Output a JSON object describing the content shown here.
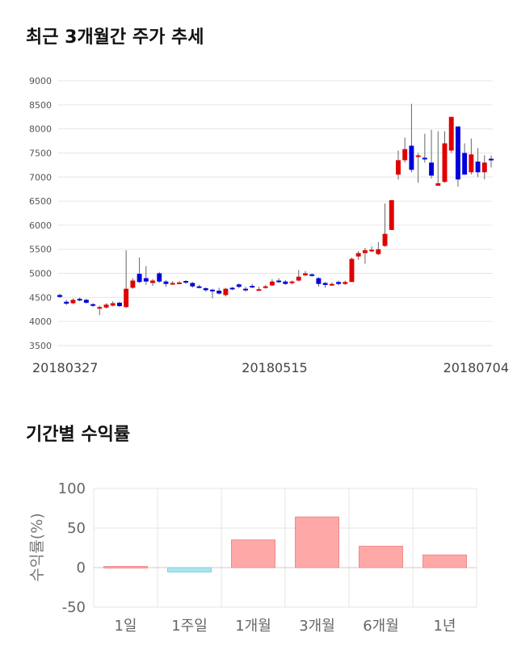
{
  "titles": {
    "price_trend": "최근 3개월간 주가 추세",
    "period_returns": "기간별 수익률"
  },
  "colors": {
    "up": "#e00000",
    "down": "#0000dd",
    "grid": "#e6e6e6",
    "positive_bar": "#ffa8a8",
    "negative_bar": "#a8e6f0"
  },
  "chart_data": [
    {
      "type": "candlestick",
      "title": "최근 3개월간 주가 추세",
      "ylim": [
        3500,
        9000
      ],
      "yticks": [
        3500,
        4000,
        4500,
        5000,
        5500,
        6000,
        6500,
        7000,
        7500,
        8000,
        8500,
        9000
      ],
      "xtick_labels": [
        "20180327",
        "20180515",
        "20180704"
      ],
      "candles": [
        [
          4550,
          4510,
          4580,
          4490
        ],
        [
          4410,
          4370,
          4450,
          4340
        ],
        [
          4380,
          4450,
          4480,
          4360
        ],
        [
          4470,
          4450,
          4500,
          4420
        ],
        [
          4450,
          4390,
          4470,
          4370
        ],
        [
          4360,
          4330,
          4380,
          4300
        ],
        [
          4290,
          4300,
          4330,
          4130
        ],
        [
          4290,
          4350,
          4380,
          4270
        ],
        [
          4330,
          4380,
          4420,
          4310
        ],
        [
          4390,
          4320,
          4410,
          4300
        ],
        [
          4300,
          4680,
          5480,
          4280
        ],
        [
          4700,
          4850,
          4900,
          4680
        ],
        [
          4990,
          4820,
          5330,
          4800
        ],
        [
          4900,
          4830,
          5150,
          4760
        ],
        [
          4800,
          4850,
          4880,
          4740
        ],
        [
          5000,
          4830,
          5030,
          4800
        ],
        [
          4830,
          4780,
          4860,
          4720
        ],
        [
          4790,
          4800,
          4840,
          4760
        ],
        [
          4800,
          4810,
          4840,
          4780
        ],
        [
          4840,
          4810,
          4860,
          4780
        ],
        [
          4800,
          4730,
          4820,
          4700
        ],
        [
          4730,
          4720,
          4760,
          4690
        ],
        [
          4690,
          4650,
          4710,
          4620
        ],
        [
          4660,
          4640,
          4680,
          4480
        ],
        [
          4640,
          4580,
          4700,
          4560
        ],
        [
          4550,
          4680,
          4700,
          4520
        ],
        [
          4700,
          4690,
          4720,
          4650
        ],
        [
          4770,
          4720,
          4790,
          4690
        ],
        [
          4680,
          4660,
          4720,
          4620
        ],
        [
          4740,
          4710,
          4780,
          4690
        ],
        [
          4660,
          4670,
          4720,
          4640
        ],
        [
          4700,
          4730,
          4760,
          4680
        ],
        [
          4750,
          4830,
          4880,
          4730
        ],
        [
          4850,
          4820,
          4900,
          4800
        ],
        [
          4830,
          4780,
          4860,
          4760
        ],
        [
          4800,
          4830,
          4850,
          4770
        ],
        [
          4850,
          4930,
          5070,
          4830
        ],
        [
          4960,
          5000,
          5050,
          4940
        ],
        [
          4980,
          4960,
          5000,
          4930
        ],
        [
          4900,
          4780,
          4920,
          4720
        ],
        [
          4800,
          4760,
          4820,
          4700
        ],
        [
          4760,
          4780,
          4810,
          4740
        ],
        [
          4820,
          4780,
          4850,
          4750
        ],
        [
          4780,
          4820,
          4850,
          4760
        ],
        [
          4820,
          5300,
          5330,
          4820
        ],
        [
          5350,
          5420,
          5460,
          5280
        ],
        [
          5420,
          5480,
          5530,
          5200
        ],
        [
          5470,
          5490,
          5560,
          5440
        ],
        [
          5400,
          5500,
          5650,
          5380
        ],
        [
          5570,
          5820,
          6450,
          5550
        ],
        [
          5900,
          6520,
          6520,
          5900
        ],
        [
          7050,
          7350,
          7550,
          6950
        ],
        [
          7350,
          7580,
          7820,
          7300
        ],
        [
          7650,
          7150,
          8520,
          7100
        ],
        [
          7450,
          7450,
          7500,
          6880
        ],
        [
          7400,
          7380,
          7900,
          7300
        ],
        [
          7300,
          7030,
          7980,
          6970
        ],
        [
          6820,
          6870,
          7950,
          6820
        ],
        [
          6900,
          7700,
          7950,
          6880
        ],
        [
          7550,
          8250,
          8250,
          7500
        ],
        [
          8050,
          6950,
          8050,
          6800
        ],
        [
          7500,
          7050,
          7700,
          7050
        ],
        [
          7100,
          7470,
          7800,
          7050
        ],
        [
          7320,
          7100,
          7600,
          7000
        ],
        [
          7100,
          7300,
          7450,
          6950
        ],
        [
          7380,
          7360,
          7450,
          7200
        ]
      ]
    },
    {
      "type": "bar",
      "title": "기간별 수익률",
      "ylabel": "수익률(%)",
      "ylim": [
        -50,
        100
      ],
      "yticks": [
        -50,
        0,
        50,
        100
      ],
      "categories": [
        "1일",
        "1주일",
        "1개월",
        "3개월",
        "6개월",
        "1년"
      ],
      "values": [
        1.5,
        -5.5,
        35,
        64,
        27,
        16
      ]
    }
  ]
}
